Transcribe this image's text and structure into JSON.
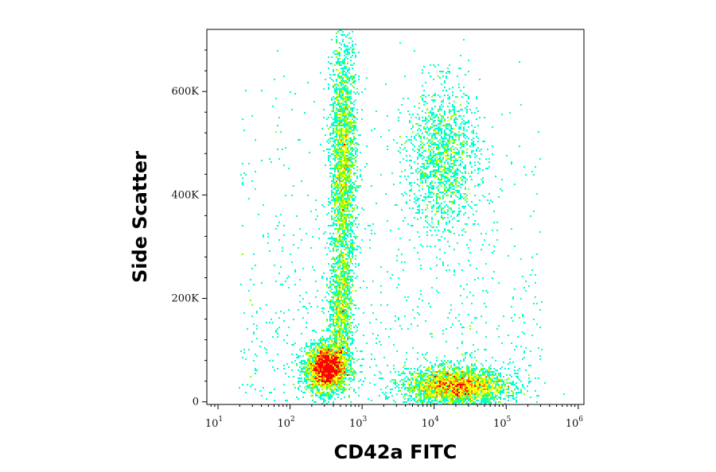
{
  "chart_data": {
    "type": "scatter",
    "style": "flow cytometry density dot plot",
    "xlabel": "CD42a FITC",
    "ylabel": "Side Scatter",
    "x_scale": "log",
    "y_scale": "linear",
    "xlim": [
      7,
      1200000
    ],
    "ylim": [
      -5000,
      720000
    ],
    "x_ticks": [
      {
        "base": "10",
        "exp": "1",
        "value": 10
      },
      {
        "base": "10",
        "exp": "2",
        "value": 100
      },
      {
        "base": "10",
        "exp": "3",
        "value": 1000
      },
      {
        "base": "10",
        "exp": "4",
        "value": 10000
      },
      {
        "base": "10",
        "exp": "5",
        "value": 100000
      },
      {
        "base": "10",
        "exp": "6",
        "value": 1000000
      }
    ],
    "y_ticks": [
      {
        "label": "0",
        "value": 0
      },
      {
        "label": "200K",
        "value": 200000
      },
      {
        "label": "400K",
        "value": 400000
      },
      {
        "label": "600K",
        "value": 600000
      }
    ],
    "grid": false,
    "legend": "none",
    "colormap": [
      "#0000ff",
      "#00a0ff",
      "#00ffd0",
      "#80ff00",
      "#ffff00",
      "#ff8000",
      "#ff0000"
    ],
    "populations": [
      {
        "center_x": 320,
        "center_y": 65000,
        "spread_log_x": 0.14,
        "spread_y": 22000,
        "density": "very high",
        "peak_color": "#ff0000"
      },
      {
        "center_x": 550,
        "center_y": 450000,
        "spread_log_x": 0.09,
        "spread_y": 130000,
        "density": "high",
        "peak_color": "#ff8000"
      },
      {
        "center_x": 500,
        "center_y": 160000,
        "spread_log_x": 0.08,
        "spread_y": 60000,
        "density": "medium",
        "peak_color": "#80ff00"
      },
      {
        "center_x": 20000,
        "center_y": 30000,
        "spread_log_x": 0.35,
        "spread_y": 18000,
        "density": "very high",
        "peak_color": "#ffff00"
      },
      {
        "center_x": 13000,
        "center_y": 470000,
        "spread_log_x": 0.25,
        "spread_y": 70000,
        "density": "low",
        "peak_color": "#00a0ff"
      }
    ]
  }
}
